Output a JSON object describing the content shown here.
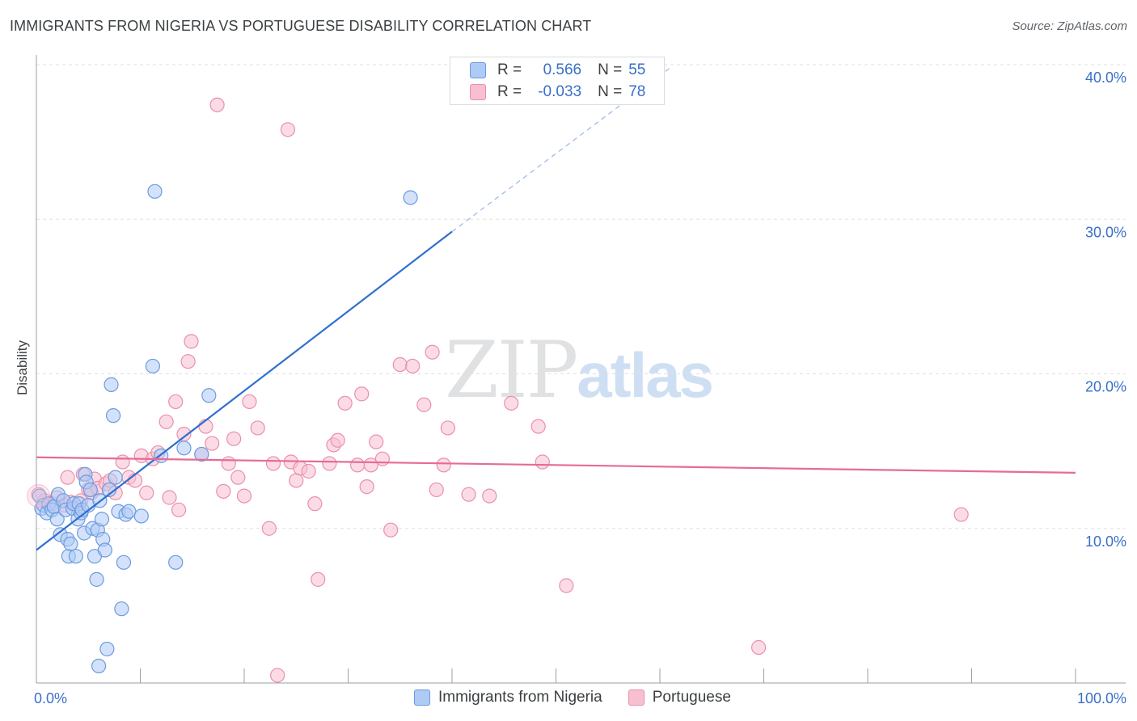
{
  "title": "IMMIGRANTS FROM NIGERIA VS PORTUGUESE DISABILITY CORRELATION CHART",
  "source": "Source: ZipAtlas.com",
  "watermark": {
    "zip": "ZIP",
    "atlas": "atlas"
  },
  "stats": {
    "r_label": "R =",
    "n_label": "N =",
    "series1": {
      "r": "0.566",
      "n": "55"
    },
    "series2": {
      "r": "-0.033",
      "n": "78"
    }
  },
  "colors": {
    "blue_fill": "#aecbf5",
    "blue_stroke": "#6b9be0",
    "blue_line": "#2f6fd0",
    "pink_fill": "#f7bfd0",
    "pink_stroke": "#ea8fae",
    "pink_line": "#e66b95",
    "axis_text": "#3a6fc9",
    "grid": "#e0e0e0"
  },
  "chart_data": {
    "type": "scatter",
    "title": "IMMIGRANTS FROM NIGERIA VS PORTUGUESE DISABILITY CORRELATION CHART",
    "xlabel": "",
    "ylabel": "Disability",
    "xlim": [
      0,
      100
    ],
    "ylim": [
      0,
      40
    ],
    "x_tick_labels": [
      "0.0%",
      "100.0%"
    ],
    "y_ticks": [
      10,
      20,
      30,
      40
    ],
    "y_tick_labels": [
      "10.0%",
      "20.0%",
      "30.0%",
      "40.0%"
    ],
    "legend": [
      "Immigrants from Nigeria",
      "Portuguese"
    ],
    "series": [
      {
        "name": "Immigrants from Nigeria",
        "color": "blue",
        "points": [
          [
            0.3,
            12.1
          ],
          [
            0.5,
            11.3
          ],
          [
            0.7,
            11.5
          ],
          [
            1.0,
            11.0
          ],
          [
            1.2,
            11.6
          ],
          [
            1.5,
            11.2
          ],
          [
            1.7,
            11.4
          ],
          [
            2.0,
            10.6
          ],
          [
            2.1,
            12.2
          ],
          [
            2.3,
            9.6
          ],
          [
            2.6,
            11.8
          ],
          [
            2.8,
            11.2
          ],
          [
            3.0,
            9.3
          ],
          [
            3.1,
            8.2
          ],
          [
            3.3,
            9.0
          ],
          [
            3.5,
            11.3
          ],
          [
            3.6,
            11.6
          ],
          [
            3.8,
            8.2
          ],
          [
            4.0,
            10.6
          ],
          [
            4.1,
            11.6
          ],
          [
            4.3,
            11.0
          ],
          [
            4.4,
            11.2
          ],
          [
            4.6,
            9.7
          ],
          [
            4.7,
            13.5
          ],
          [
            4.8,
            13.0
          ],
          [
            5.0,
            11.5
          ],
          [
            5.2,
            12.5
          ],
          [
            5.4,
            10.0
          ],
          [
            5.6,
            8.2
          ],
          [
            5.8,
            6.7
          ],
          [
            5.9,
            9.9
          ],
          [
            6.1,
            11.8
          ],
          [
            6.3,
            10.6
          ],
          [
            6.4,
            9.3
          ],
          [
            6.6,
            8.6
          ],
          [
            6.8,
            2.2
          ],
          [
            7.2,
            19.3
          ],
          [
            7.4,
            17.3
          ],
          [
            7.6,
            13.3
          ],
          [
            7.9,
            11.1
          ],
          [
            8.2,
            4.8
          ],
          [
            8.4,
            7.8
          ],
          [
            8.6,
            10.9
          ],
          [
            8.9,
            11.1
          ],
          [
            10.1,
            10.8
          ],
          [
            11.2,
            20.5
          ],
          [
            11.4,
            31.8
          ],
          [
            12.0,
            14.7
          ],
          [
            13.4,
            7.8
          ],
          [
            14.2,
            15.2
          ],
          [
            15.9,
            14.8
          ],
          [
            16.6,
            18.6
          ],
          [
            36.0,
            31.4
          ],
          [
            6.0,
            1.1
          ],
          [
            7.0,
            12.5
          ]
        ],
        "trend": {
          "x0": 0,
          "y0": 8.6,
          "x1": 40,
          "y1": 29.2,
          "dash_to_x": 61,
          "dash_to_y": 39.8
        }
      },
      {
        "name": "Portuguese",
        "color": "pink",
        "points": [
          [
            0.2,
            12.2
          ],
          [
            0.8,
            11.8
          ],
          [
            1.5,
            11.6
          ],
          [
            2.0,
            12.0
          ],
          [
            2.7,
            11.5
          ],
          [
            3.0,
            13.3
          ],
          [
            3.3,
            11.7
          ],
          [
            3.9,
            11.4
          ],
          [
            4.3,
            11.8
          ],
          [
            4.5,
            13.5
          ],
          [
            5.0,
            12.5
          ],
          [
            5.3,
            12.3
          ],
          [
            5.6,
            13.2
          ],
          [
            5.9,
            12.6
          ],
          [
            6.7,
            12.9
          ],
          [
            7.1,
            13.1
          ],
          [
            7.6,
            12.3
          ],
          [
            8.3,
            14.3
          ],
          [
            8.9,
            13.3
          ],
          [
            9.5,
            13.1
          ],
          [
            10.1,
            14.7
          ],
          [
            10.6,
            12.3
          ],
          [
            11.2,
            14.5
          ],
          [
            11.7,
            14.9
          ],
          [
            12.5,
            16.9
          ],
          [
            12.8,
            12.0
          ],
          [
            13.4,
            18.2
          ],
          [
            13.7,
            11.2
          ],
          [
            14.2,
            16.1
          ],
          [
            14.9,
            22.1
          ],
          [
            14.6,
            20.8
          ],
          [
            15.9,
            14.8
          ],
          [
            16.3,
            16.6
          ],
          [
            16.9,
            15.5
          ],
          [
            17.4,
            37.4
          ],
          [
            18.0,
            12.4
          ],
          [
            18.5,
            14.2
          ],
          [
            19.0,
            15.8
          ],
          [
            19.4,
            13.3
          ],
          [
            20.0,
            12.1
          ],
          [
            20.5,
            18.2
          ],
          [
            21.3,
            16.5
          ],
          [
            22.4,
            10.0
          ],
          [
            22.8,
            14.2
          ],
          [
            23.2,
            0.5
          ],
          [
            24.2,
            35.8
          ],
          [
            24.5,
            14.3
          ],
          [
            25.0,
            13.1
          ],
          [
            25.4,
            13.9
          ],
          [
            26.2,
            13.7
          ],
          [
            26.8,
            11.6
          ],
          [
            27.1,
            6.7
          ],
          [
            28.2,
            14.2
          ],
          [
            28.6,
            15.4
          ],
          [
            29.0,
            15.7
          ],
          [
            29.7,
            18.1
          ],
          [
            30.9,
            14.1
          ],
          [
            31.3,
            18.7
          ],
          [
            31.8,
            12.7
          ],
          [
            32.2,
            14.1
          ],
          [
            32.7,
            15.6
          ],
          [
            33.3,
            14.5
          ],
          [
            34.1,
            9.9
          ],
          [
            35.0,
            20.6
          ],
          [
            36.2,
            20.5
          ],
          [
            37.3,
            18.0
          ],
          [
            38.1,
            21.4
          ],
          [
            38.5,
            12.5
          ],
          [
            39.2,
            14.1
          ],
          [
            39.6,
            16.5
          ],
          [
            41.6,
            12.2
          ],
          [
            43.6,
            12.1
          ],
          [
            45.7,
            18.1
          ],
          [
            48.3,
            16.6
          ],
          [
            48.7,
            14.3
          ],
          [
            51.0,
            6.3
          ],
          [
            69.5,
            2.3
          ],
          [
            89.0,
            10.9
          ]
        ],
        "trend": {
          "x0": 0,
          "y0": 14.6,
          "x1": 100,
          "y1": 13.6
        }
      }
    ]
  }
}
